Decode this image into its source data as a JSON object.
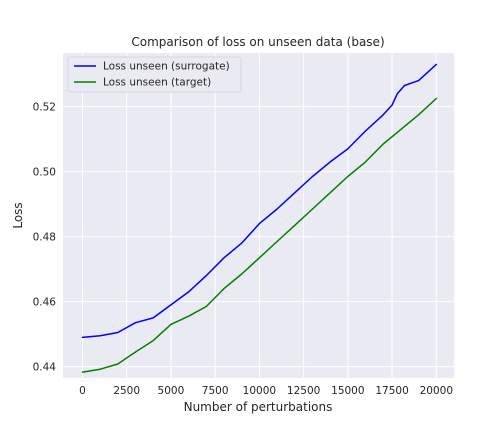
{
  "chart_data": {
    "type": "line",
    "title": "Comparison of loss on unseen data (base)",
    "xlabel": "Number of perturbations",
    "ylabel": "Loss",
    "xlim": [
      -1100,
      21000
    ],
    "ylim": [
      0.4365,
      0.5365
    ],
    "xticks": [
      0,
      2500,
      5000,
      7500,
      10000,
      12500,
      15000,
      17500,
      20000
    ],
    "yticks": [
      0.44,
      0.46,
      0.48,
      0.5,
      0.52
    ],
    "xtick_labels": [
      "0",
      "2500",
      "5000",
      "7500",
      "10000",
      "12500",
      "15000",
      "17500",
      "20000"
    ],
    "ytick_labels": [
      "0.44",
      "0.46",
      "0.48",
      "0.50",
      "0.52"
    ],
    "grid": true,
    "legend_position": "top-left",
    "background_color": "#eaeaf2",
    "series": [
      {
        "name": "Loss unseen (surrogate)",
        "color": "#0000ff",
        "x": [
          0,
          1000,
          2000,
          3000,
          4000,
          5000,
          6000,
          7000,
          8000,
          9000,
          10000,
          11000,
          12000,
          13000,
          14000,
          15000,
          16000,
          17000,
          17500,
          17800,
          18200,
          19000,
          20000
        ],
        "y": [
          0.449,
          0.4495,
          0.4505,
          0.4535,
          0.455,
          0.459,
          0.463,
          0.468,
          0.4735,
          0.478,
          0.484,
          0.4885,
          0.4935,
          0.4985,
          0.503,
          0.507,
          0.5125,
          0.5175,
          0.5205,
          0.524,
          0.5265,
          0.528,
          0.533
        ]
      },
      {
        "name": "Loss unseen (target)",
        "color": "#008000",
        "x": [
          0,
          1000,
          2000,
          3000,
          4000,
          5000,
          6000,
          7000,
          8000,
          9000,
          10000,
          11000,
          12000,
          13000,
          14000,
          15000,
          16000,
          17000,
          18000,
          19000,
          20000
        ],
        "y": [
          0.4383,
          0.4392,
          0.4408,
          0.4445,
          0.448,
          0.453,
          0.4555,
          0.4585,
          0.464,
          0.4685,
          0.4735,
          0.4785,
          0.4835,
          0.4885,
          0.4935,
          0.4985,
          0.503,
          0.5085,
          0.513,
          0.5175,
          0.5225
        ]
      }
    ]
  }
}
